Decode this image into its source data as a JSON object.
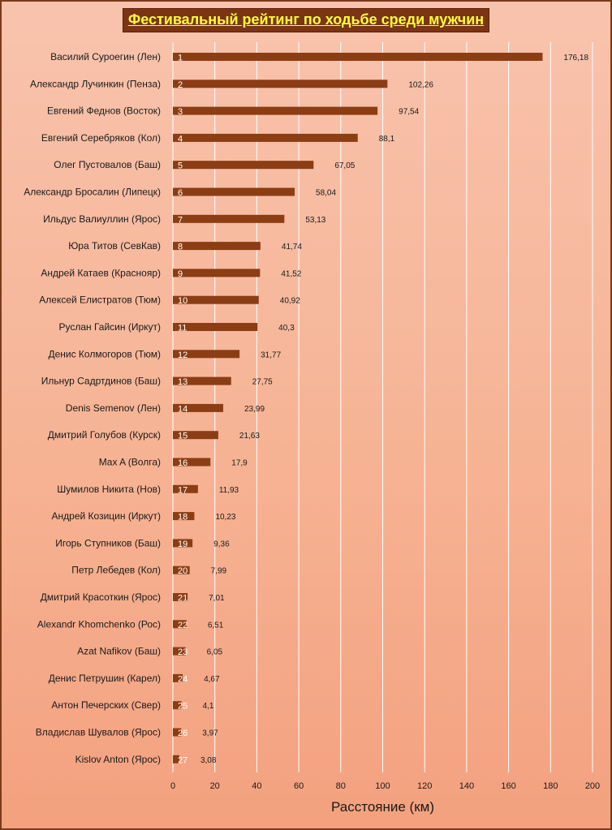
{
  "title": "Фестивальный рейтинг по ходьбе среди мужчин",
  "colors": {
    "bar": "#8b3d14",
    "grid": "#ffffff",
    "title_bg": "#7b3414",
    "title_fg": "#ffff3a"
  },
  "chart_data": {
    "type": "bar",
    "orientation": "horizontal",
    "title": "Фестивальный рейтинг по ходьбе среди мужчин",
    "xlabel": "Расстояние (км)",
    "ylabel": "",
    "xlim": [
      0,
      200
    ],
    "xticks": [
      0,
      20,
      40,
      60,
      80,
      100,
      120,
      140,
      160,
      180,
      200
    ],
    "grid": true,
    "categories": [
      "Василий Суроегин (Лен)",
      "Александр Лучинкин (Пенза)",
      "Евгений Феднов (Восток)",
      "Евгений Серебряков (Кол)",
      "Олег Пустовалов (Баш)",
      "Александр Бросалин (Липецк)",
      "Ильдус Валиуллин (Ярос)",
      "Юра Титов (СевКав)",
      "Андрей Катаев (Краснояр)",
      "Алексей Елистратов (Тюм)",
      "Руслан Гайсин (Иркут)",
      "Денис Колмогоров (Тюм)",
      "Ильнур Садртдинов (Баш)",
      "Denis Semenov (Лен)",
      "Дмитрий Голубов (Курск)",
      "Max A (Волга)",
      "Шумилов Никита (Нов)",
      "Андрей Козицин (Иркут)",
      "Игорь Ступников (Баш)",
      "Петр Лебедев (Кол)",
      "Дмитрий Красоткин (Ярос)",
      "Alexandr Khomchenko (Рос)",
      "Azat Nafikov (Баш)",
      "Денис Петрушин (Карел)",
      "Антон Печерских (Свер)",
      "Владислав Шувалов (Ярос)",
      "Kislov Anton (Ярос)"
    ],
    "ranks": [
      "1",
      "2",
      "3",
      "4",
      "5",
      "6",
      "7",
      "8",
      "9",
      "10",
      "11",
      "12",
      "13",
      "14",
      "15",
      "16",
      "17",
      "18",
      "19",
      "20",
      "21",
      "22",
      "23",
      "24",
      "25",
      "26",
      "27"
    ],
    "values": [
      176.18,
      102.26,
      97.54,
      88.1,
      67.05,
      58.04,
      53.13,
      41.74,
      41.52,
      40.92,
      40.3,
      31.77,
      27.75,
      23.99,
      21.63,
      17.9,
      11.93,
      10.23,
      9.36,
      7.99,
      7.01,
      6.51,
      6.05,
      4.67,
      4.1,
      3.97,
      3.08
    ],
    "value_labels": [
      "176,18",
      "102,26",
      "97,54",
      "88,1",
      "67,05",
      "58,04",
      "53,13",
      "41,74",
      "41,52",
      "40,92",
      "40,3",
      "31,77",
      "27,75",
      "23,99",
      "21,63",
      "17,9",
      "11,93",
      "10,23",
      "9,36",
      "7,99",
      "7,01",
      "6,51",
      "6,05",
      "4,67",
      "4,1",
      "3,97",
      "3,08"
    ]
  }
}
